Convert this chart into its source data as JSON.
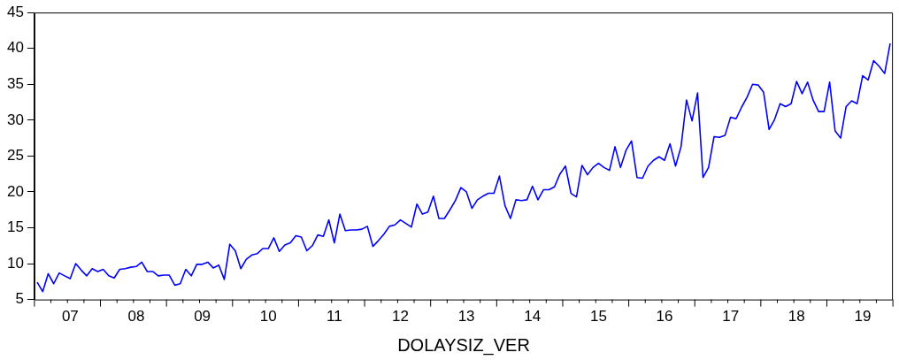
{
  "chart_data": {
    "type": "line",
    "xlabel": "DOLAYSIZ_VER",
    "categories": [
      null,
      null,
      null,
      null,
      null,
      null,
      "07",
      null,
      null,
      null,
      null,
      null,
      null,
      null,
      null,
      null,
      null,
      null,
      "08",
      null,
      null,
      null,
      null,
      null,
      null,
      null,
      null,
      null,
      null,
      null,
      "09",
      null,
      null,
      null,
      null,
      null,
      null,
      null,
      null,
      null,
      null,
      null,
      "10",
      null,
      null,
      null,
      null,
      null,
      null,
      null,
      null,
      null,
      null,
      null,
      "11",
      null,
      null,
      null,
      null,
      null,
      null,
      null,
      null,
      null,
      null,
      null,
      "12",
      null,
      null,
      null,
      null,
      null,
      null,
      null,
      null,
      null,
      null,
      null,
      "13",
      null,
      null,
      null,
      null,
      null,
      null,
      null,
      null,
      null,
      null,
      null,
      "14",
      null,
      null,
      null,
      null,
      null,
      null,
      null,
      null,
      null,
      null,
      null,
      "15",
      null,
      null,
      null,
      null,
      null,
      null,
      null,
      null,
      null,
      null,
      null,
      "16",
      null,
      null,
      null,
      null,
      null,
      null,
      null,
      null,
      null,
      null,
      null,
      "17",
      null,
      null,
      null,
      null,
      null,
      null,
      null,
      null,
      null,
      null,
      null,
      "18",
      null,
      null,
      null,
      null,
      null,
      null,
      null,
      null,
      null,
      null,
      null,
      "19",
      null,
      null,
      null,
      null,
      null
    ],
    "series": [
      {
        "color": "#0000ff",
        "values": [
          7.4,
          6.1,
          8.6,
          7.2,
          8.7,
          8.3,
          7.9,
          10.0,
          9.1,
          8.3,
          9.3,
          8.9,
          9.2,
          8.3,
          8.0,
          9.2,
          9.3,
          9.5,
          9.6,
          10.2,
          8.9,
          8.9,
          8.3,
          8.4,
          8.4,
          7.0,
          7.2,
          9.2,
          8.3,
          9.9,
          9.9,
          10.2,
          9.4,
          9.8,
          7.8,
          12.7,
          11.8,
          9.3,
          10.6,
          11.2,
          11.4,
          12.1,
          12.1,
          13.6,
          11.7,
          12.6,
          12.9,
          13.9,
          13.7,
          11.8,
          12.5,
          14.0,
          13.8,
          16.1,
          12.9,
          16.9,
          14.6,
          14.7,
          14.7,
          14.8,
          15.2,
          12.4,
          13.2,
          14.1,
          15.2,
          15.4,
          16.1,
          15.6,
          15.1,
          18.3,
          16.9,
          17.2,
          19.4,
          16.3,
          16.3,
          17.5,
          18.8,
          20.6,
          20.0,
          17.7,
          18.9,
          19.4,
          19.8,
          19.8,
          22.2,
          18.1,
          16.3,
          18.9,
          18.8,
          18.9,
          20.8,
          18.9,
          20.3,
          20.3,
          20.7,
          22.5,
          23.6,
          19.8,
          19.3,
          23.7,
          22.4,
          23.4,
          24.0,
          23.4,
          23.0,
          26.3,
          23.4,
          25.8,
          27.1,
          22.0,
          21.9,
          23.6,
          24.4,
          24.9,
          24.4,
          26.7,
          23.6,
          26.3,
          32.8,
          29.9,
          33.8,
          22.0,
          23.4,
          27.7,
          27.6,
          27.9,
          30.4,
          30.2,
          31.8,
          33.2,
          35.0,
          34.9,
          33.9,
          28.7,
          30.1,
          32.3,
          31.9,
          32.3,
          35.4,
          33.7,
          35.3,
          32.8,
          31.2,
          31.2,
          35.3,
          28.5,
          27.5,
          31.9,
          32.7,
          32.3,
          36.2,
          35.6,
          38.3,
          37.5,
          36.5,
          40.7
        ]
      }
    ],
    "ylim": [
      5,
      45
    ],
    "yticks": [
      5,
      10,
      15,
      20,
      25,
      30,
      35,
      40,
      45
    ],
    "grid": false,
    "legend": false,
    "marker": "none",
    "line_style": "solid"
  }
}
